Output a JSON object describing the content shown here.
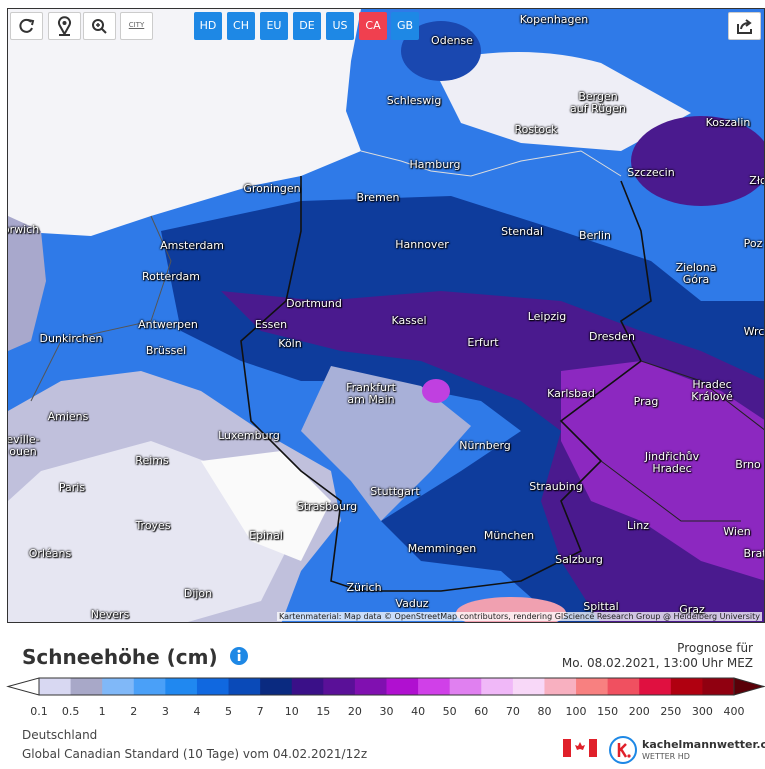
{
  "toolbar": {
    "city_icon": "CITY",
    "models": [
      "HD",
      "CH",
      "EU",
      "DE",
      "US",
      "CA",
      "GB"
    ],
    "active_model": "CA"
  },
  "map": {
    "cities": [
      "Kopenhagen",
      "Odense",
      "Schleswig",
      "Bergen\nauf Rügen",
      "Rostock",
      "Koszalin",
      "Hamburg",
      "Szczecin",
      "Groningen",
      "Bremen",
      "Zło",
      "orwich",
      "Amsterdam",
      "Hannover",
      "Stendal",
      "Berlin",
      "Poz",
      "Rotterdam",
      "Zielona\nGóra",
      "Dortmund",
      "Leipzig",
      "Antwerpen",
      "Essen",
      "Kassel",
      "Dunkirchen",
      "Wrc",
      "Dresden",
      "Brüssel",
      "Köln",
      "Erfurt",
      "Frankfurt\nam Main",
      "Karlsbad",
      "Prag",
      "Hradec\nKrálové",
      "Amiens",
      "eville-\nouen",
      "Luxemburg",
      "Nürnberg",
      "Reims",
      "Jindřichův\nHradec",
      "Brno",
      "Paris",
      "Stuttgart",
      "Straubing",
      "Strasbourg",
      "Troyes",
      "Linz",
      "Epinal",
      "München",
      "Wien",
      "Brat",
      "Orléans",
      "Memmingen",
      "Salzburg",
      "Dijon",
      "Zürich",
      "Vaduz",
      "Spittal",
      "Graz",
      "Nevers"
    ],
    "attribution": "Kartenmaterial: Map data © OpenStreetMap contributors, rendering GIScience Research Group @ Heidelberg University"
  },
  "legend": {
    "title": "Schneehöhe (cm)",
    "forecast_label": "Prognose für",
    "forecast_time": "Mo. 08.02.2021, 13:00 Uhr MEZ",
    "scale_labels": [
      "0.1",
      "0.5",
      "1",
      "2",
      "3",
      "4",
      "5",
      "7",
      "10",
      "15",
      "20",
      "30",
      "40",
      "50",
      "60",
      "70",
      "80",
      "100",
      "150",
      "200",
      "250",
      "300",
      "400"
    ],
    "colors": [
      "#ffffff",
      "#d8d8f2",
      "#a8a8c8",
      "#80b8f8",
      "#4aa0f8",
      "#2088f0",
      "#1068e0",
      "#0a4ab8",
      "#0a2a80",
      "#3a1088",
      "#5a1098",
      "#8010b0",
      "#b010d0",
      "#d040e8",
      "#e080f0",
      "#f0b8f8",
      "#f8d8f8",
      "#f8b0c0",
      "#f88080",
      "#f05060",
      "#e01040",
      "#b00010",
      "#900010",
      "#5a0008"
    ]
  },
  "footer": {
    "region": "Deutschland",
    "model_run": "Global Canadian Standard (10 Tage) vom 04.02.2021/12z",
    "brand": "kachelmannwetter.com",
    "brand_sub": "WETTER HD"
  }
}
